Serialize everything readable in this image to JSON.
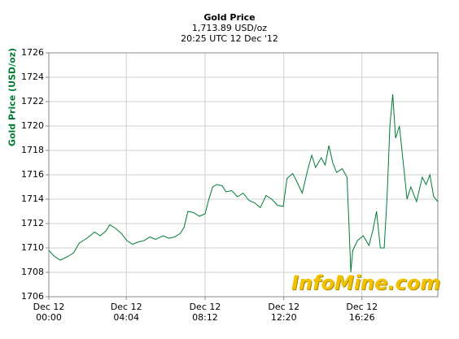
{
  "chart_data": {
    "type": "line",
    "title": "Gold Price",
    "subtitle": "1,713.89 USD/oz",
    "timestamp": "20:25 UTC 12 Dec '12",
    "ylabel": "Gold Price (USD/oz)",
    "watermark": "InfoMine.com",
    "color": "#007a33",
    "grid": true,
    "xlim": [
      0,
      20.4167
    ],
    "ylim": [
      1706,
      1726
    ],
    "yticks": [
      1706,
      1708,
      1710,
      1712,
      1714,
      1716,
      1718,
      1720,
      1722,
      1724,
      1726
    ],
    "xticks": [
      {
        "value": 0,
        "label": "Dec 12\n00:00"
      },
      {
        "value": 4.0667,
        "label": "Dec 12\n04:04"
      },
      {
        "value": 8.2,
        "label": "Dec 12\n08:12"
      },
      {
        "value": 12.3333,
        "label": "Dec 12\n12:20"
      },
      {
        "value": 16.4333,
        "label": "Dec 12\n16:26"
      }
    ],
    "x": [
      0,
      0.3,
      0.6,
      1.0,
      1.3,
      1.6,
      2.0,
      2.4,
      2.7,
      3.0,
      3.2,
      3.5,
      3.8,
      4.1,
      4.4,
      4.7,
      5.0,
      5.3,
      5.6,
      6.0,
      6.3,
      6.6,
      6.9,
      7.1,
      7.3,
      7.6,
      7.9,
      8.2,
      8.4,
      8.6,
      8.8,
      9.1,
      9.3,
      9.6,
      9.9,
      10.2,
      10.5,
      10.8,
      11.1,
      11.4,
      11.7,
      12.0,
      12.3,
      12.5,
      12.8,
      13.0,
      13.3,
      13.6,
      13.8,
      14.0,
      14.3,
      14.5,
      14.7,
      14.9,
      15.1,
      15.4,
      15.65,
      15.75,
      15.85,
      15.95,
      16.2,
      16.5,
      16.8,
      17.0,
      17.2,
      17.4,
      17.6,
      17.75,
      17.9,
      18.05,
      18.2,
      18.4,
      18.6,
      18.8,
      19.0,
      19.3,
      19.6,
      19.8,
      20.0,
      20.2,
      20.4167
    ],
    "values": [
      1709.8,
      1709.3,
      1709.0,
      1709.3,
      1709.6,
      1710.4,
      1710.8,
      1711.3,
      1711.0,
      1711.4,
      1711.9,
      1711.6,
      1711.2,
      1710.6,
      1710.3,
      1710.5,
      1710.6,
      1710.9,
      1710.7,
      1711.0,
      1710.8,
      1710.9,
      1711.2,
      1711.7,
      1713.0,
      1712.9,
      1712.6,
      1712.8,
      1714.0,
      1715.0,
      1715.2,
      1715.1,
      1714.6,
      1714.7,
      1714.2,
      1714.5,
      1713.9,
      1713.7,
      1713.3,
      1714.3,
      1714.0,
      1713.5,
      1713.4,
      1715.7,
      1716.1,
      1715.5,
      1714.5,
      1716.5,
      1717.6,
      1716.6,
      1717.4,
      1716.8,
      1718.4,
      1717.0,
      1716.2,
      1716.5,
      1715.8,
      1712.0,
      1708.0,
      1709.8,
      1710.6,
      1711.0,
      1710.2,
      1711.4,
      1713.0,
      1710.0,
      1710.0,
      1714.1,
      1720.0,
      1722.6,
      1719.0,
      1720.0,
      1717.0,
      1714.0,
      1715.0,
      1713.8,
      1715.8,
      1715.2,
      1716.0,
      1714.2,
      1713.8
    ]
  }
}
